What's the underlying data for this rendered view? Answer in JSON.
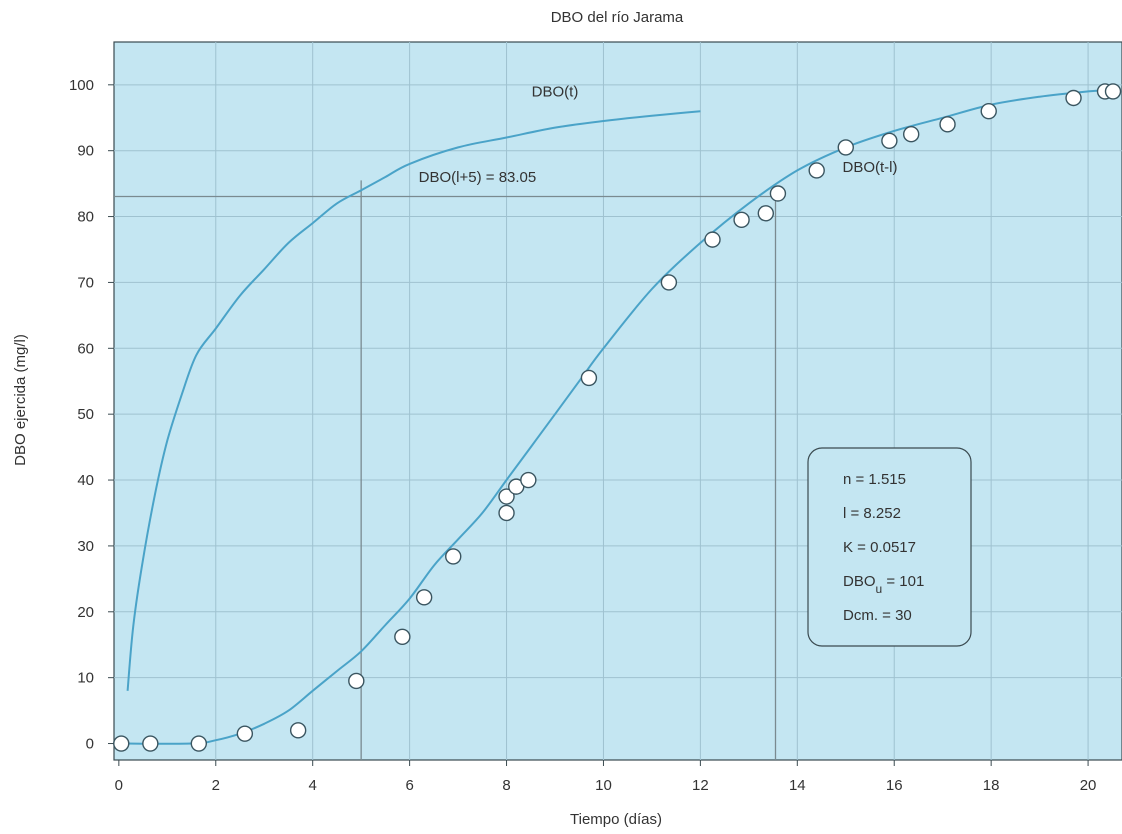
{
  "chart_data": {
    "type": "scatter",
    "title": "DBO del río Jarama",
    "xlabel": "Tiempo (días)",
    "ylabel": "DBO ejercida (mg/l)",
    "xlim": [
      -0.1,
      20.7
    ],
    "ylim": [
      -2.5,
      106.5
    ],
    "x_ticks": [
      0,
      2,
      4,
      6,
      8,
      10,
      12,
      14,
      16,
      18,
      20
    ],
    "y_ticks": [
      0,
      10,
      20,
      30,
      40,
      50,
      60,
      70,
      80,
      90,
      100
    ],
    "grid": true,
    "colors": {
      "background": "#c4e6f2",
      "curve": "#4aa3c8",
      "grid": "#9fc2d0",
      "guide": "#7a8a90",
      "marker_fill": "#ffffff",
      "marker_stroke": "#3a5560"
    },
    "series": [
      {
        "name": "DBO(t)",
        "kind": "line",
        "x": [
          0.18,
          0.3,
          0.5,
          0.75,
          1.0,
          1.3,
          1.6,
          2.0,
          2.5,
          3.0,
          3.5,
          4.0,
          4.5,
          5.0,
          5.5,
          6.0,
          7.0,
          8.0,
          9.0,
          10.0,
          11.0,
          12.0
        ],
        "y": [
          8,
          18,
          28,
          38,
          46,
          53,
          59,
          63,
          68,
          72,
          76,
          79,
          82,
          84,
          86,
          88,
          90.5,
          92,
          93.5,
          94.5,
          95.3,
          96
        ]
      },
      {
        "name": "DBO(t-l)",
        "kind": "line",
        "x": [
          0,
          1.5,
          2.0,
          2.5,
          3.0,
          3.5,
          4.0,
          4.5,
          5.0,
          5.5,
          6.0,
          6.5,
          7.0,
          7.5,
          8.0,
          8.5,
          9.0,
          9.5,
          10.0,
          11.0,
          12.0,
          13.0,
          14.0,
          15.0,
          16.0,
          17.0,
          18.0,
          19.0,
          20.0,
          20.4
        ],
        "y": [
          0,
          0,
          0.5,
          1.5,
          3,
          5,
          8,
          11,
          14,
          18,
          22,
          27,
          31,
          35,
          40,
          45,
          50,
          55,
          60,
          69,
          76,
          82,
          87,
          90.5,
          93,
          95,
          97,
          98.2,
          99,
          99.2
        ]
      },
      {
        "name": "",
        "kind": "points",
        "x": [
          0.05,
          0.65,
          1.65,
          2.6,
          3.7,
          4.9,
          5.85,
          6.3,
          6.9,
          8.0,
          8.0,
          8.2,
          8.45,
          9.7,
          11.35,
          12.25,
          12.85,
          13.35,
          13.6,
          14.4,
          15.0,
          15.9,
          16.35,
          17.1,
          17.95,
          19.7,
          20.35,
          21.05
        ],
        "y": [
          0,
          0,
          0,
          1.5,
          2,
          9.5,
          16.2,
          22.2,
          28.4,
          35,
          37.5,
          39,
          40,
          55.5,
          70,
          76.5,
          79.5,
          80.5,
          83.5,
          87,
          90.5,
          91.5,
          92.5,
          94,
          96,
          98,
          99,
          99
        ]
      }
    ],
    "guides": [
      {
        "label": "DBO(l+5) = 83.05",
        "y": 83.05,
        "x_from": -0.1,
        "x_to": 13.55
      },
      {
        "x": 5.0,
        "y_from": -2.5,
        "y_to": 85.5
      },
      {
        "x": 13.55,
        "y_from": -2.5,
        "y_to": 83.05
      }
    ],
    "annotations": [
      {
        "text": "DBO(t)",
        "x": 9.0,
        "y": 99
      },
      {
        "text": "DBO(l+5) = 83.05",
        "x": 7.4,
        "y": 86
      },
      {
        "text": "DBO(t-l)",
        "x": 15.5,
        "y": 87.5
      }
    ],
    "parameter_box": {
      "lines": [
        {
          "text": "n = 1.515"
        },
        {
          "text": "l = 8.252"
        },
        {
          "text": "K = 0.0517"
        },
        {
          "text": "DBO",
          "sub": "u",
          "after": " = 101"
        },
        {
          "text": "Dcm. = 30"
        }
      ]
    }
  }
}
